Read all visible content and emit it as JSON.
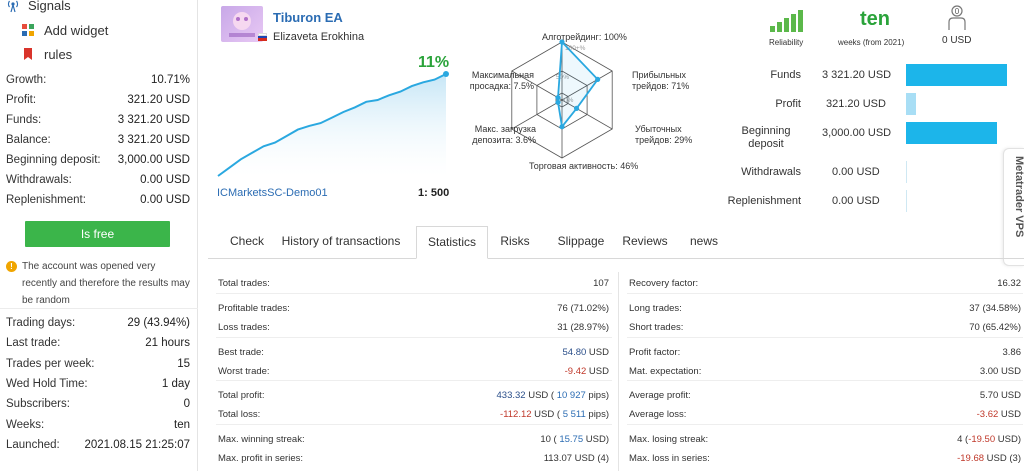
{
  "sidebar": {
    "nav": [
      {
        "label": "Signals",
        "icon": "signal-icon"
      },
      {
        "label": "Add widget",
        "icon": "widget-icon"
      },
      {
        "label": "rules",
        "icon": "bookmark-icon"
      }
    ],
    "stats1": [
      {
        "label": "Growth:",
        "value": "10.71%"
      },
      {
        "label": "Profit:",
        "value": "321.20 USD"
      },
      {
        "label": "Funds:",
        "value": "3 321.20 USD"
      },
      {
        "label": "Balance:",
        "value": "3 321.20 USD"
      },
      {
        "label": "Beginning deposit:",
        "value": "3,000.00 USD"
      },
      {
        "label": "Withdrawals:",
        "value": "0.00 USD"
      },
      {
        "label": "Replenishment:",
        "value": "0.00 USD"
      }
    ],
    "free_button": "Is free",
    "warning": "The account was opened very recently and therefore the results may be random",
    "stats2": [
      {
        "label": "Trading days:",
        "value": "29 (43.94%)"
      },
      {
        "label": "Last trade:",
        "value": "21 hours"
      },
      {
        "label": "Trades per week:",
        "value": "15"
      },
      {
        "label": "Wed Hold Time:",
        "value": "1 day"
      },
      {
        "label": "Subscribers:",
        "value": "0"
      },
      {
        "label": "Weeks:",
        "value": "ten"
      },
      {
        "label": "Launched:",
        "value": "2021.08.15 21:25:07"
      }
    ]
  },
  "header": {
    "title": "Tiburon EA",
    "author": "Elizaveta Erokhina",
    "growth": "11%",
    "server": "ICMarketsSC-Demo01",
    "leverage": "1: 500",
    "growth_series": [
      0,
      0.9,
      1.8,
      2.5,
      3.2,
      3.6,
      4.3,
      5.0,
      5.4,
      5.7,
      6.3,
      6.9,
      7.4,
      8.0,
      8.2,
      8.7,
      9.1,
      9.7,
      10.1,
      10.4,
      11.0
    ]
  },
  "radar": {
    "scale_labels": [
      "100+%",
      "50%",
      "0%"
    ],
    "axes": [
      {
        "label": "Алготрейдинг: 100%",
        "value": 100
      },
      {
        "label": "Прибыльных трейдов: 71%",
        "value": 71
      },
      {
        "label": "Убыточных трейдов: 29%",
        "value": 29
      },
      {
        "label": "Торговая активность: 46%",
        "value": 46
      },
      {
        "label": "Макс. загрузка депозита: 3.6%",
        "value": 3.6
      },
      {
        "label": "Максимальная просадка: 7.5%",
        "value": 7.5
      }
    ]
  },
  "summary": {
    "reliability_label": "Reliability",
    "weeks_value": "ten",
    "weeks_label": "weeks (from 2021)",
    "subscribers_value": "0 USD",
    "subscribers_badge": "0",
    "reliability_level": 5
  },
  "funds": [
    {
      "label": "Funds",
      "value": "3 321.20 USD",
      "bar": 1.0
    },
    {
      "label": "Profit",
      "value": "321.20 USD",
      "bar": 0.097
    },
    {
      "label": "Beginning deposit",
      "value": "3,000.00 USD",
      "bar": 0.903
    },
    {
      "label": "Withdrawals",
      "value": "0.00 USD",
      "bar": 0
    },
    {
      "label": "Replenishment",
      "value": "0.00 USD",
      "bar": 0
    }
  ],
  "vps_label": "Metatrader VPS",
  "tabs": [
    {
      "label": "Check",
      "active": false
    },
    {
      "label": "History of transactions",
      "active": false
    },
    {
      "label": "Statistics",
      "active": true
    },
    {
      "label": "Risks",
      "active": false
    },
    {
      "label": "Slippage",
      "active": false
    },
    {
      "label": "Reviews",
      "active": false
    },
    {
      "label": "news",
      "active": false
    }
  ],
  "statistics": {
    "left": [
      {
        "label": "Total trades:",
        "value": "107"
      },
      {
        "label": "Profitable trades:",
        "value": "76 (71.02%)"
      },
      {
        "label": "Loss trades:",
        "value": "31 (28.97%)"
      },
      {
        "label": "Best trade:",
        "value": "54.80",
        "unit": " USD",
        "tone": "pos"
      },
      {
        "label": "Worst trade:",
        "value": "-9.42",
        "unit": " USD",
        "tone": "neg"
      },
      {
        "label": "Total profit:",
        "value": "433.32",
        "unit": " USD ( ",
        "pips": "10 927",
        "tail": " pips)",
        "tone": "pos"
      },
      {
        "label": "Total loss:",
        "value": "-112.12",
        "unit": " USD ( ",
        "pips": "5 511",
        "tail": " pips)",
        "tone": "neg"
      },
      {
        "label": "Max. winning streak:",
        "value": "10 (",
        "pips": " 15.75",
        "tail": " USD)"
      },
      {
        "label": "Max. profit in series:",
        "value": "113.07 USD (4)"
      }
    ],
    "right": [
      {
        "label": "Recovery factor:",
        "value": "16.32"
      },
      {
        "label": "Long trades:",
        "value": "37 (34.58%)"
      },
      {
        "label": "Short trades:",
        "value": "70 (65.42%)"
      },
      {
        "label": "Profit factor:",
        "value": "3.86"
      },
      {
        "label": "Mat. expectation:",
        "value": "3.00 USD"
      },
      {
        "label": "Average profit:",
        "value": "5.70 USD"
      },
      {
        "label": "Average loss:",
        "value": "-3.62",
        "unit": " USD",
        "tone": "neg"
      },
      {
        "label": "Max. losing streak:",
        "value": "4 (",
        "neg": "-19.50",
        "tail": " USD)"
      },
      {
        "label": "Max. loss in series:",
        "value": "-19.68",
        "unit": " USD (3)",
        "tone": "neg"
      }
    ]
  }
}
